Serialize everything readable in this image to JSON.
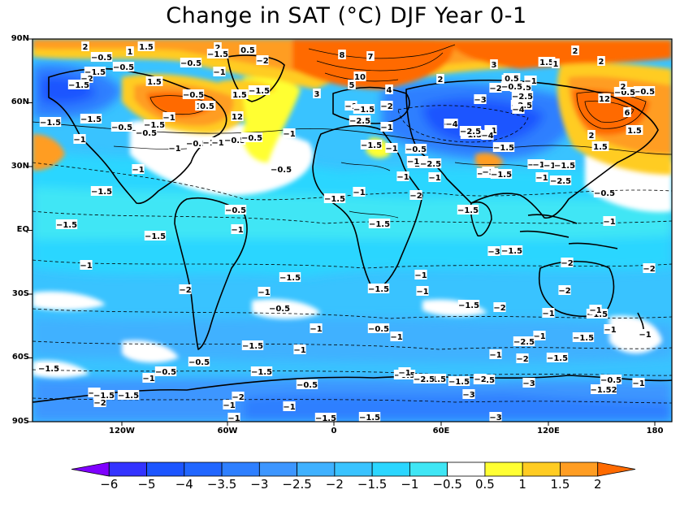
{
  "title": "Change in SAT (°C) DJF Year 0-1",
  "y_axis_labels": [
    "90N",
    "60N",
    "30N",
    "EQ",
    "30S",
    "60S",
    "90S"
  ],
  "x_axis_labels": [
    "120W",
    "60W",
    "0",
    "60E",
    "120E",
    "180"
  ],
  "colorbar": {
    "levels": [
      "-6",
      "-5",
      "-4",
      "-3.5",
      "-3",
      "-2.5",
      "-2",
      "-1.5",
      "-1",
      "-0.5",
      "0.5",
      "1",
      "1.5",
      "2"
    ],
    "colors": [
      "#7f00ff",
      "#3333ff",
      "#1c55ff",
      "#2166ff",
      "#2e7fff",
      "#3d96ff",
      "#3fb1ff",
      "#39c3ff",
      "#2bd6ff",
      "#3fe6f5",
      "#ffffff",
      "#ffff33",
      "#ffcc22",
      "#ff9d22",
      "#ff6a00"
    ]
  },
  "contour_labels": [
    {
      "t": "2"
    },
    {
      "t": "1"
    },
    {
      "t": "1.5"
    },
    {
      "t": "-0.5"
    },
    {
      "t": "-0.5"
    },
    {
      "t": "-1.5"
    },
    {
      "t": "-2"
    },
    {
      "t": "-1.5"
    },
    {
      "t": "2"
    },
    {
      "t": "-1.5"
    },
    {
      "t": "1.5"
    },
    {
      "t": "-0.5"
    },
    {
      "t": "-2"
    },
    {
      "t": "0.5"
    },
    {
      "t": "-1"
    },
    {
      "t": "1.5"
    },
    {
      "t": "-0.5"
    },
    {
      "t": "1"
    },
    {
      "t": "0.5"
    },
    {
      "t": "12"
    },
    {
      "t": "-1"
    },
    {
      "t": "-1.5"
    },
    {
      "t": "-0.5"
    },
    {
      "t": "-1.5"
    },
    {
      "t": "-0.5"
    },
    {
      "t": "-1"
    },
    {
      "t": "-1"
    },
    {
      "t": "-0.5"
    },
    {
      "t": "-1"
    },
    {
      "t": "-0.5"
    },
    {
      "t": "-1"
    },
    {
      "t": "-1"
    },
    {
      "t": "-0.5"
    },
    {
      "t": "-1.5"
    },
    {
      "t": "-1.5"
    },
    {
      "t": "-0.5"
    },
    {
      "t": "-1"
    },
    {
      "t": "-1.5"
    },
    {
      "t": "-1.5"
    },
    {
      "t": "-1"
    },
    {
      "t": "-2"
    },
    {
      "t": "-1"
    },
    {
      "t": "-0.5"
    },
    {
      "t": "-1.5"
    },
    {
      "t": "-1.5"
    },
    {
      "t": "-1.5"
    },
    {
      "t": "-2"
    },
    {
      "t": "-1"
    },
    {
      "t": "-1"
    },
    {
      "t": "-1"
    },
    {
      "t": "-1"
    },
    {
      "t": "-0.5"
    },
    {
      "t": "-1.5"
    },
    {
      "t": "-1.5"
    },
    {
      "t": "-1"
    },
    {
      "t": "-1"
    },
    {
      "t": "-0.5"
    },
    {
      "t": "-1.5"
    },
    {
      "t": "-1"
    },
    {
      "t": "-1.5"
    },
    {
      "t": "-1"
    },
    {
      "t": "-0.5"
    },
    {
      "t": "-1.5"
    },
    {
      "t": "-1.5"
    },
    {
      "t": "-2"
    },
    {
      "t": "-1"
    },
    {
      "t": "-1.5"
    },
    {
      "t": "-1"
    },
    {
      "t": "-0.5"
    },
    {
      "t": "-2"
    },
    {
      "t": "-1"
    },
    {
      "t": "-1.5"
    },
    {
      "t": "-1.5"
    },
    {
      "t": "-0.5"
    },
    {
      "t": "-1"
    },
    {
      "t": "-1.5"
    },
    {
      "t": "-1.5"
    },
    {
      "t": "-2.5"
    },
    {
      "t": "-1.5"
    },
    {
      "t": "-2"
    },
    {
      "t": "-3"
    },
    {
      "t": "-2"
    },
    {
      "t": "-1"
    },
    {
      "t": "-2"
    },
    {
      "t": "-1"
    },
    {
      "t": "-2.5"
    },
    {
      "t": "-1.5"
    },
    {
      "t": "-3"
    },
    {
      "t": "-1.52"
    },
    {
      "t": "-1"
    },
    {
      "t": "-0.5"
    },
    {
      "t": "-3"
    },
    {
      "t": "8"
    },
    {
      "t": "7"
    },
    {
      "t": "10"
    },
    {
      "t": "5"
    },
    {
      "t": "4"
    },
    {
      "t": "3"
    },
    {
      "t": "3"
    },
    {
      "t": "2"
    },
    {
      "t": "-2"
    },
    {
      "t": "0.5"
    },
    {
      "t": "-1.5"
    },
    {
      "t": "-2.5"
    },
    {
      "t": "-1"
    },
    {
      "t": "1.5"
    },
    {
      "t": "2"
    },
    {
      "t": "2"
    },
    {
      "t": "1"
    },
    {
      "t": "-0.5"
    },
    {
      "t": "-1"
    },
    {
      "t": "-2.5"
    },
    {
      "t": "-4"
    },
    {
      "t": "-3"
    },
    {
      "t": "-1"
    },
    {
      "t": "-2"
    },
    {
      "t": "-1.5"
    },
    {
      "t": "-4"
    },
    {
      "t": "-2.5"
    },
    {
      "t": "-4"
    },
    {
      "t": "-1.5"
    },
    {
      "t": "-0.5"
    },
    {
      "t": "-1"
    },
    {
      "t": "-3"
    },
    {
      "t": "-1.5"
    },
    {
      "t": "-2"
    },
    {
      "t": "-1"
    },
    {
      "t": "-1.5"
    },
    {
      "t": "-0.5"
    },
    {
      "t": "-1"
    },
    {
      "t": "-1.5"
    },
    {
      "t": "12"
    },
    {
      "t": "6"
    },
    {
      "t": "2"
    },
    {
      "t": "1.5"
    },
    {
      "t": "1.5"
    },
    {
      "t": "-0.5"
    },
    {
      "t": "-0.5"
    },
    {
      "t": "2"
    },
    {
      "t": "0.5"
    },
    {
      "t": "-1"
    },
    {
      "t": "-1"
    },
    {
      "t": "-1.5"
    },
    {
      "t": "-0.5"
    },
    {
      "t": "-2.5"
    },
    {
      "t": "-1.5"
    },
    {
      "t": "-2"
    },
    {
      "t": "-1"
    },
    {
      "t": "-2.5"
    },
    {
      "t": "-1.5"
    },
    {
      "t": "-1"
    },
    {
      "t": "-2"
    },
    {
      "t": "-2"
    },
    {
      "t": "-1.5"
    },
    {
      "t": "-1"
    },
    {
      "t": "-1.5"
    },
    {
      "t": "-2"
    },
    {
      "t": "-3"
    },
    {
      "t": "-2.5"
    },
    {
      "t": "-1.5"
    },
    {
      "t": "-1"
    },
    {
      "t": "-2"
    },
    {
      "t": "-1"
    },
    {
      "t": "-1.5"
    },
    {
      "t": "-1"
    },
    {
      "t": "-0.5"
    },
    {
      "t": "-1"
    },
    {
      "t": "-1.5"
    },
    {
      "t": "-1"
    }
  ]
}
